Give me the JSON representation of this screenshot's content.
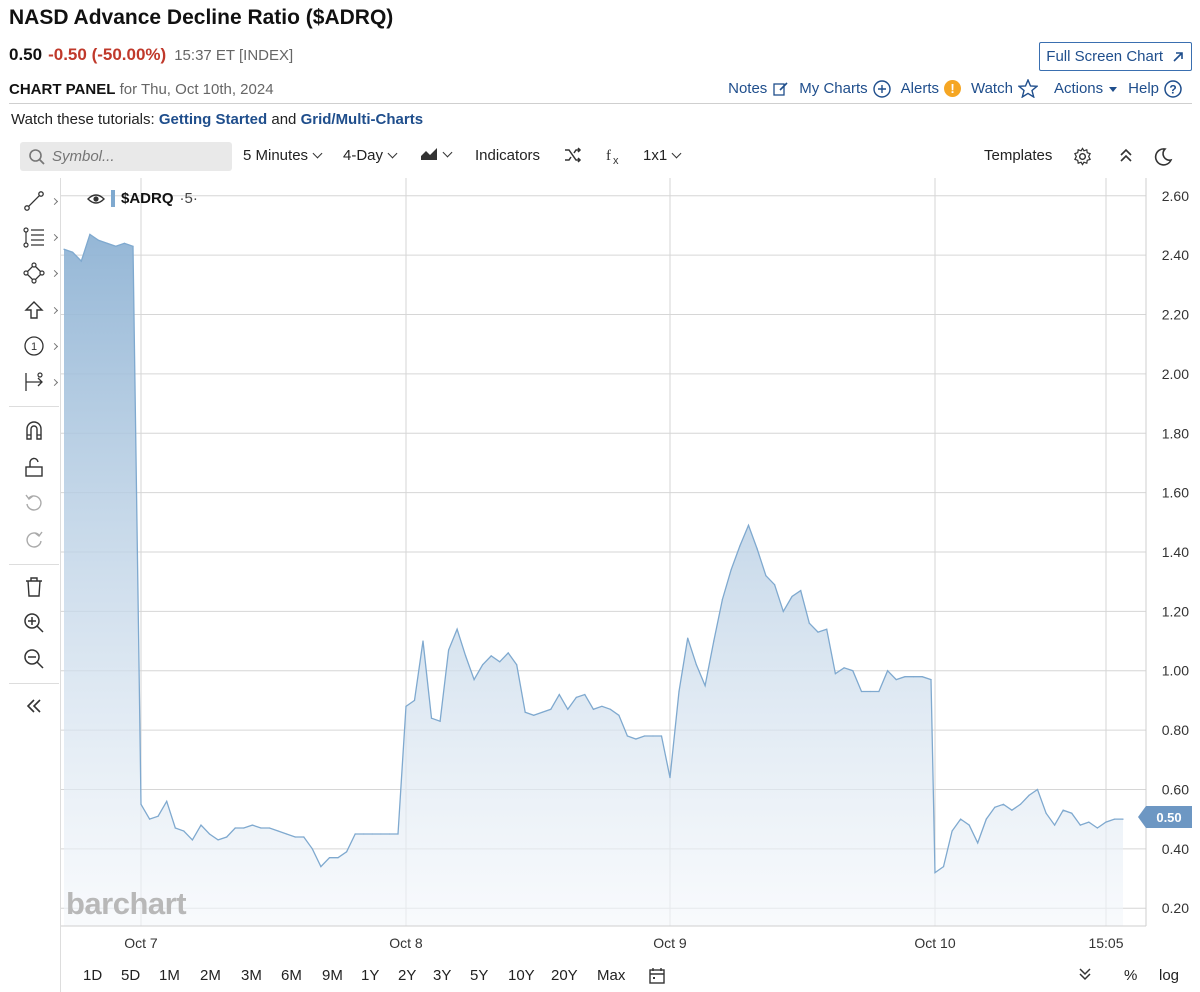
{
  "header": {
    "title": "NASD Advance Decline Ratio ($ADRQ)",
    "last": "0.50",
    "change": "-0.50 (-50.00%)",
    "meta": "15:37 ET [INDEX]",
    "fullscreen_label": "Full Screen Chart"
  },
  "panel": {
    "label": "CHART PANEL",
    "date_text": "for Thu, Oct 10th, 2024",
    "links": {
      "notes": "Notes",
      "my_charts": "My Charts",
      "alerts": "Alerts",
      "watch": "Watch",
      "actions": "Actions",
      "help": "Help"
    }
  },
  "tutorials": {
    "prefix": "Watch these tutorials:",
    "link1": "Getting Started",
    "and": "and",
    "link2": "Grid/Multi-Charts"
  },
  "toolbar": {
    "search_placeholder": "Symbol...",
    "interval": "5 Minutes",
    "period": "4-Day",
    "indicators": "Indicators",
    "layout": "1x1",
    "templates": "Templates"
  },
  "legend": {
    "symbol": "$ADRQ",
    "period": "·5·"
  },
  "watermark": "barchart",
  "last_price_flag": "0.50",
  "range_buttons": [
    "1D",
    "5D",
    "1M",
    "2M",
    "3M",
    "6M",
    "9M",
    "1Y",
    "2Y",
    "3Y",
    "5Y",
    "10Y",
    "20Y",
    "Max"
  ],
  "bottom_right": {
    "percent": "%",
    "log": "log"
  },
  "icons": [
    "search-icon",
    "chart-type-icon",
    "shuffle-icon",
    "fx-icon",
    "settings-icon",
    "collapse-icon",
    "dark-mode-icon",
    "calendar-icon",
    "expand-down-icon",
    "eye-icon"
  ],
  "colors": {
    "line": "#7fa9cf",
    "fill_top": "#8fb3d4",
    "fill_bottom": "#f4f7fb",
    "negative": "#c0392b",
    "link": "#1f4e8c"
  },
  "chart_data": {
    "type": "area",
    "title": "",
    "xlabel": "",
    "ylabel": "",
    "ylim": [
      0.14,
      2.66
    ],
    "y_ticks": [
      "2.60",
      "2.40",
      "2.20",
      "2.00",
      "1.80",
      "1.60",
      "1.40",
      "1.20",
      "1.00",
      "0.80",
      "0.60",
      "0.40",
      "0.20"
    ],
    "x_tick_labels": [
      "Oct 7",
      "Oct 8",
      "Oct 9",
      "Oct 10",
      "15:05"
    ],
    "grid": true,
    "series": [
      {
        "name": "$ADRQ",
        "values": [
          2.42,
          2.41,
          2.38,
          2.47,
          2.45,
          2.44,
          2.43,
          2.44,
          2.43,
          0.55,
          0.5,
          0.51,
          0.56,
          0.47,
          0.46,
          0.43,
          0.48,
          0.45,
          0.43,
          0.44,
          0.47,
          0.47,
          0.48,
          0.47,
          0.47,
          0.46,
          0.45,
          0.44,
          0.44,
          0.4,
          0.34,
          0.37,
          0.37,
          0.39,
          0.45,
          0.45,
          0.45,
          0.45,
          0.45,
          0.45,
          0.88,
          0.9,
          1.1,
          0.84,
          0.83,
          1.07,
          1.14,
          1.05,
          0.97,
          1.02,
          1.05,
          1.03,
          1.06,
          1.02,
          0.86,
          0.85,
          0.86,
          0.87,
          0.92,
          0.87,
          0.91,
          0.92,
          0.87,
          0.88,
          0.87,
          0.85,
          0.78,
          0.77,
          0.78,
          0.78,
          0.78,
          0.64,
          0.93,
          1.11,
          1.02,
          0.95,
          1.1,
          1.24,
          1.34,
          1.42,
          1.49,
          1.41,
          1.32,
          1.29,
          1.2,
          1.25,
          1.27,
          1.16,
          1.13,
          1.14,
          0.99,
          1.01,
          1.0,
          0.93,
          0.93,
          0.93,
          1.0,
          0.97,
          0.98,
          0.98,
          0.98,
          0.97,
          0.32,
          0.34,
          0.46,
          0.5,
          0.48,
          0.42,
          0.5,
          0.54,
          0.55,
          0.53,
          0.55,
          0.58,
          0.6,
          0.52,
          0.48,
          0.53,
          0.52,
          0.48,
          0.49,
          0.47,
          0.49,
          0.5,
          0.5
        ]
      }
    ]
  }
}
